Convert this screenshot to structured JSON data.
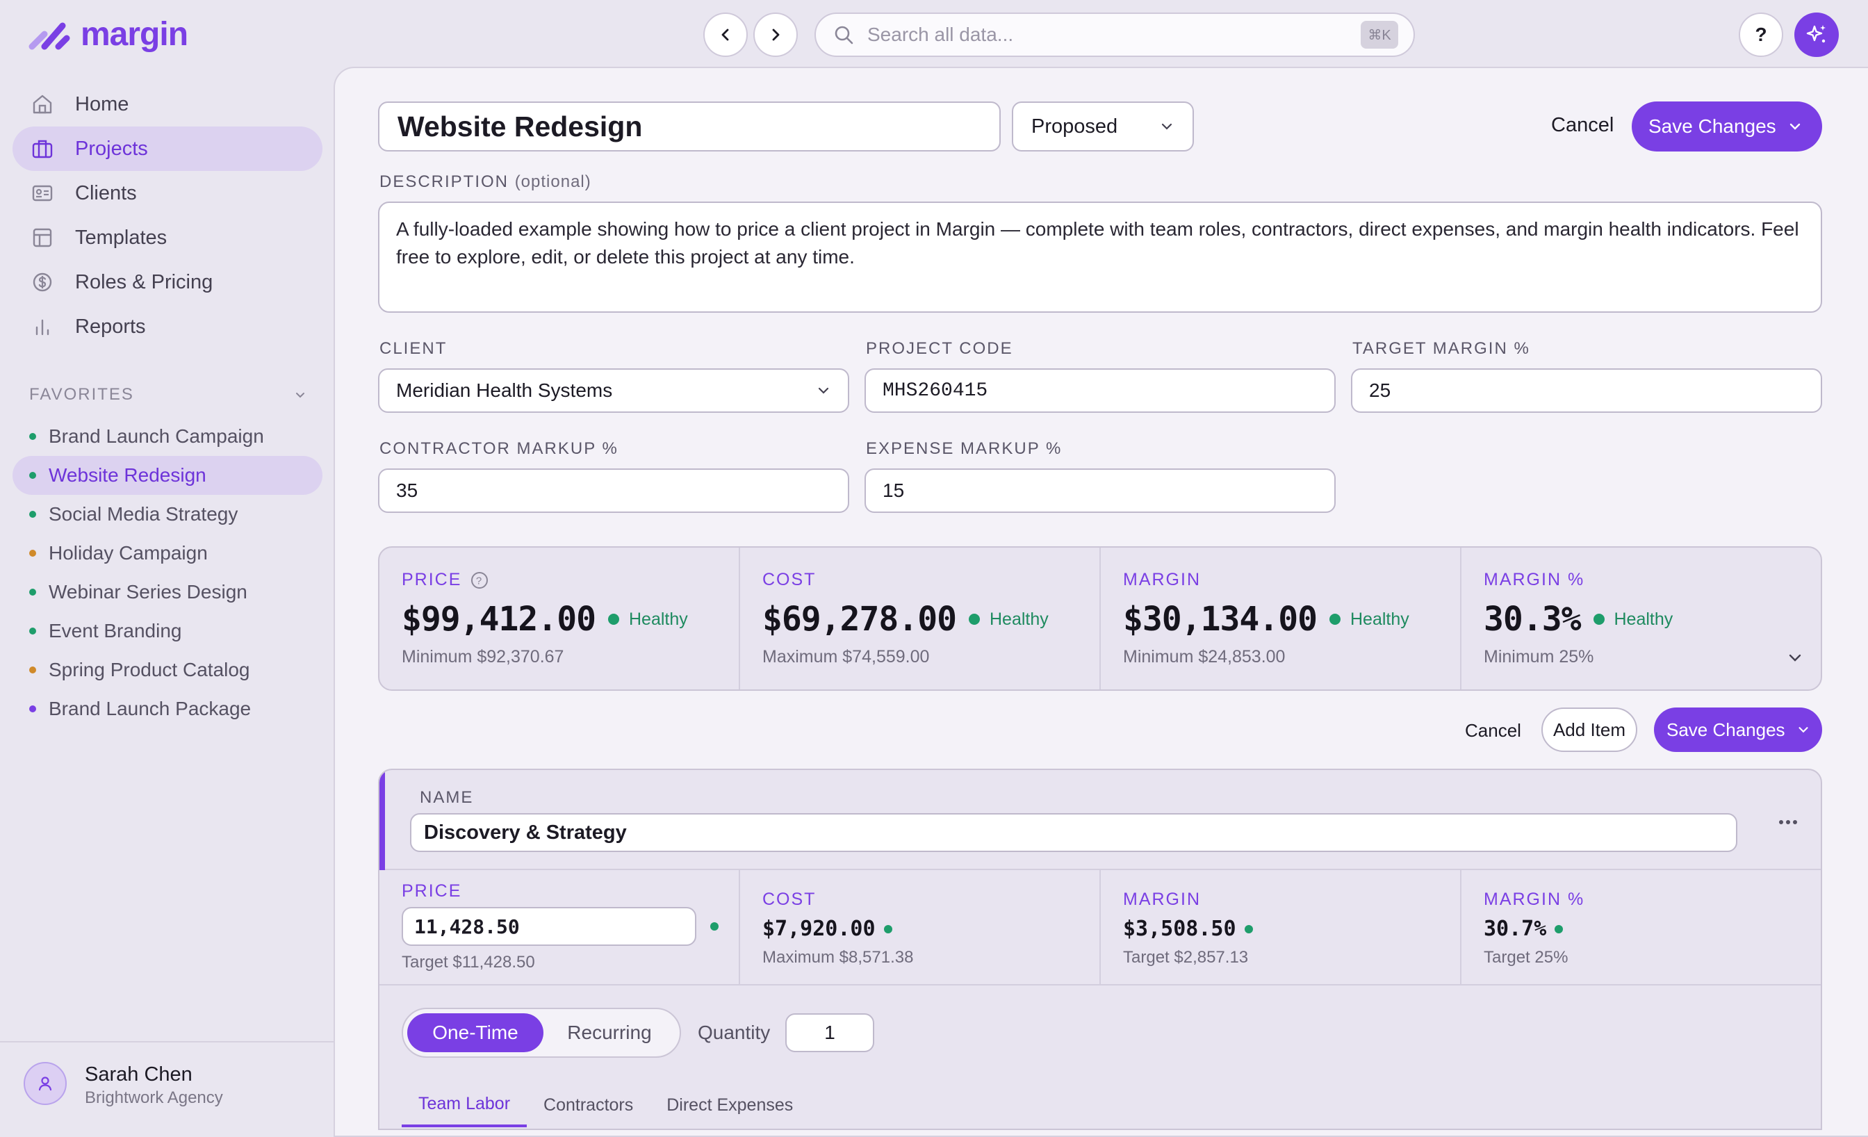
{
  "app": {
    "name": "margin"
  },
  "search": {
    "placeholder": "Search all data...",
    "shortcut": "⌘K"
  },
  "help_label": "?",
  "sidebar": {
    "nav": [
      {
        "label": "Home",
        "icon": "home-icon"
      },
      {
        "label": "Projects",
        "icon": "briefcase-icon",
        "active": true
      },
      {
        "label": "Clients",
        "icon": "id-card-icon"
      },
      {
        "label": "Templates",
        "icon": "layout-icon"
      },
      {
        "label": "Roles & Pricing",
        "icon": "dollar-circle-icon"
      },
      {
        "label": "Reports",
        "icon": "bar-chart-icon"
      }
    ],
    "favorites_label": "FAVORITES",
    "favorites": [
      {
        "label": "Brand Launch Campaign",
        "color": "#1e9d6b"
      },
      {
        "label": "Website Redesign",
        "color": "#1e9d6b",
        "active": true
      },
      {
        "label": "Social Media Strategy",
        "color": "#1e9d6b"
      },
      {
        "label": "Holiday Campaign",
        "color": "#d08a2a"
      },
      {
        "label": "Webinar Series Design",
        "color": "#1e9d6b"
      },
      {
        "label": "Event Branding",
        "color": "#1e9d6b"
      },
      {
        "label": "Spring Product Catalog",
        "color": "#d08a2a"
      },
      {
        "label": "Brand Launch Package",
        "color": "#7a3fe4"
      }
    ],
    "user": {
      "name": "Sarah Chen",
      "org": "Brightwork Agency"
    }
  },
  "project": {
    "title": "Website Redesign",
    "status": "Proposed",
    "cancel_label": "Cancel",
    "save_label": "Save Changes",
    "description_label": "DESCRIPTION",
    "description_optional": "(optional)",
    "description": "A fully-loaded example showing how to price a client project in Margin — complete with team roles, contractors, direct expenses, and margin health indicators. Feel free to explore, edit, or delete this project at any time.",
    "client_label": "CLIENT",
    "client": "Meridian Health Systems",
    "code_label": "PROJECT CODE",
    "code": "MHS260415",
    "target_margin_label": "TARGET MARGIN %",
    "target_margin": "25",
    "contractor_markup_label": "CONTRACTOR MARKUP %",
    "contractor_markup": "35",
    "expense_markup_label": "EXPENSE MARKUP %",
    "expense_markup": "15"
  },
  "summary": {
    "price": {
      "label": "PRICE",
      "value": "$99,412.00",
      "health": "Healthy",
      "sub": "Minimum $92,370.67"
    },
    "cost": {
      "label": "COST",
      "value": "$69,278.00",
      "health": "Healthy",
      "sub": "Maximum $74,559.00"
    },
    "margin": {
      "label": "MARGIN",
      "value": "$30,134.00",
      "health": "Healthy",
      "sub": "Minimum $24,853.00"
    },
    "margin_pct": {
      "label": "MARGIN %",
      "value": "30.3%",
      "health": "Healthy",
      "sub": "Minimum 25%"
    }
  },
  "item_actions": {
    "cancel": "Cancel",
    "add": "Add Item",
    "save": "Save Changes"
  },
  "item": {
    "name_label": "NAME",
    "name": "Discovery & Strategy",
    "price_label": "PRICE",
    "price": "11,428.50",
    "price_sub": "Target $11,428.50",
    "cost_label": "COST",
    "cost": "$7,920.00",
    "cost_sub": "Maximum $8,571.38",
    "margin_label": "MARGIN",
    "margin": "$3,508.50",
    "margin_sub": "Target $2,857.13",
    "margin_pct_label": "MARGIN %",
    "margin_pct": "30.7%",
    "margin_pct_sub": "Target 25%",
    "billing": {
      "one_time": "One-Time",
      "recurring": "Recurring"
    },
    "quantity_label": "Quantity",
    "quantity": "1",
    "tabs": [
      "Team Labor",
      "Contractors",
      "Direct Expenses"
    ]
  }
}
